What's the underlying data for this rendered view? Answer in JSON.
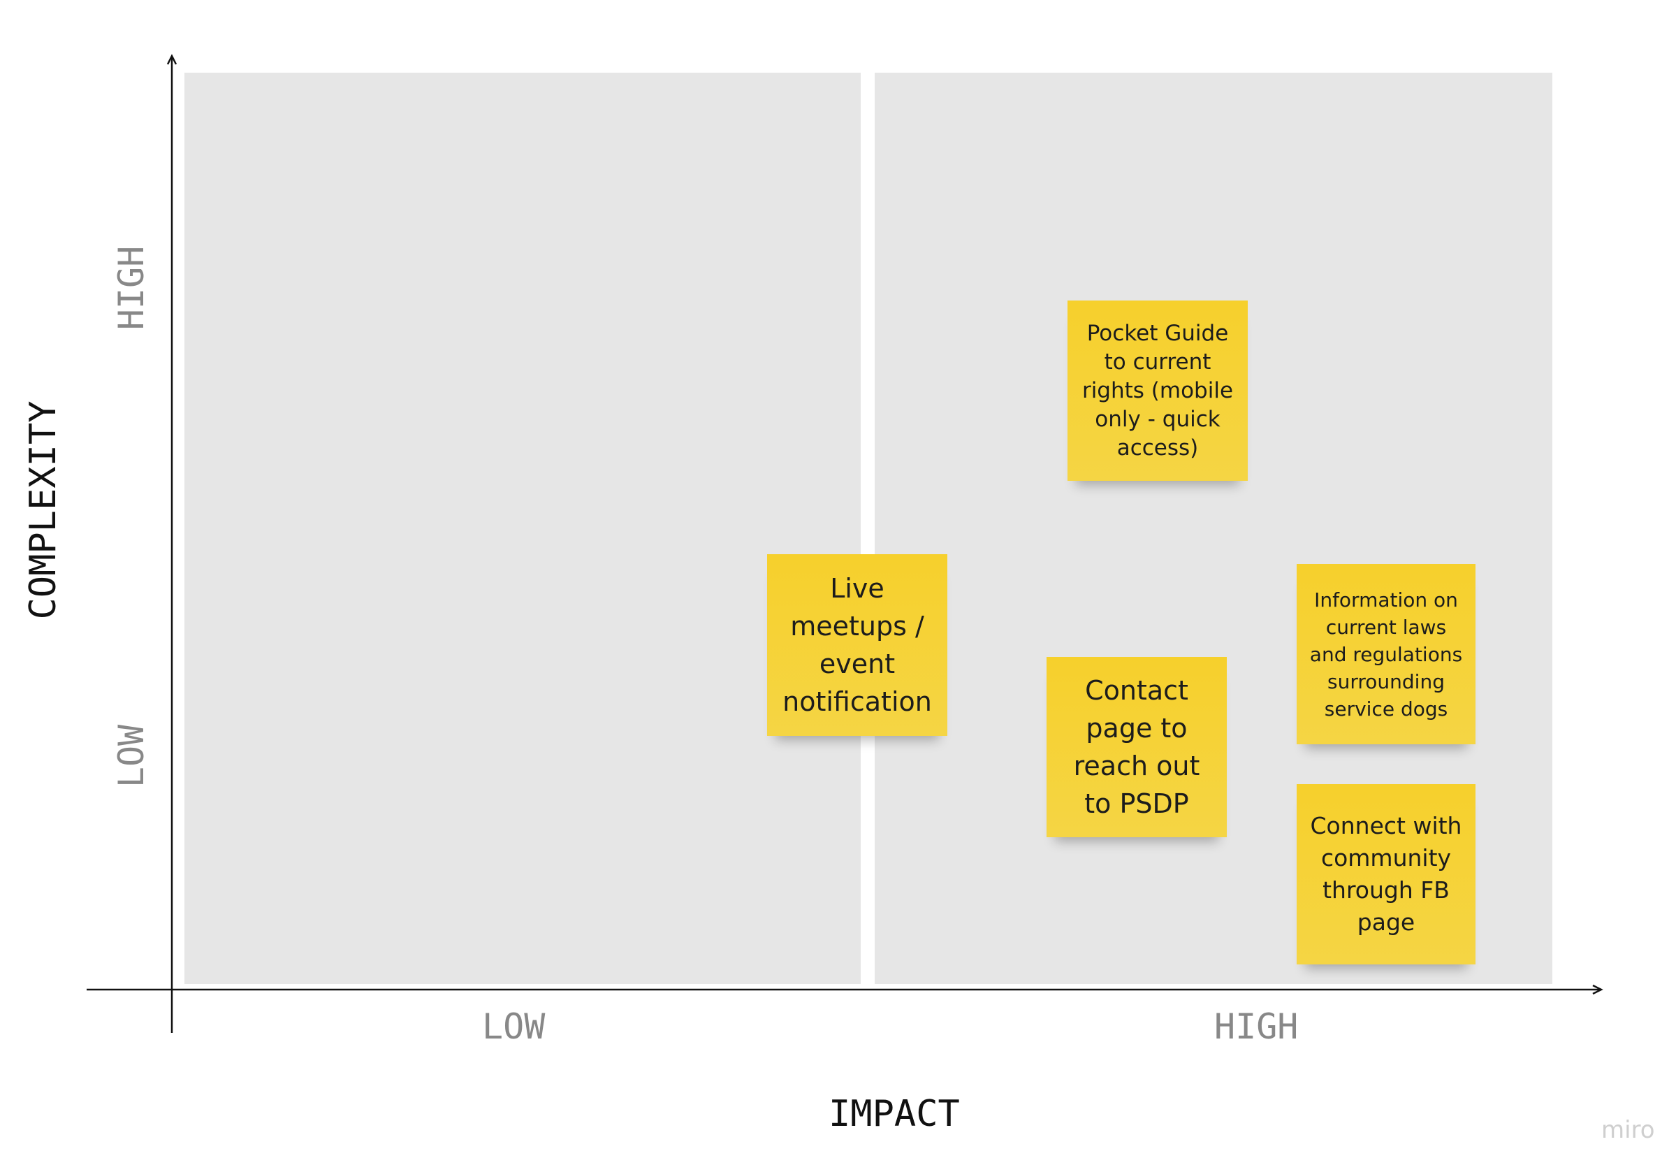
{
  "x_axis": {
    "title": "IMPACT",
    "low_label": "LOW",
    "high_label": "HIGH"
  },
  "y_axis": {
    "title": "COMPLEXITY",
    "low_label": "LOW",
    "high_label": "HIGH"
  },
  "sticky_notes": [
    {
      "text": "Pocket Guide to current rights (mobile only - quick access)"
    },
    {
      "text": "Live meetups / event notification"
    },
    {
      "text": "Contact page to reach out to PSDP"
    },
    {
      "text": "Information on current laws and regulations surrounding service dogs"
    },
    {
      "text": "Connect with community through FB page"
    }
  ],
  "colors": {
    "panel": "#e6e6e6",
    "sticky_note": "#f5d33c",
    "axis": "#111111",
    "tick_label": "#888888"
  },
  "watermark": "miro"
}
